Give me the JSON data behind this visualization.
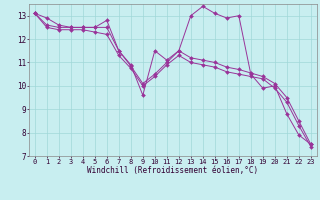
{
  "title": "",
  "xlabel": "Windchill (Refroidissement éolien,°C)",
  "ylabel": "",
  "background_color": "#c8eef0",
  "grid_color": "#a0d8d8",
  "line_color": "#993399",
  "xlim": [
    -0.5,
    23.5
  ],
  "ylim": [
    7,
    13.5
  ],
  "yticks": [
    7,
    8,
    9,
    10,
    11,
    12,
    13
  ],
  "xticks": [
    0,
    1,
    2,
    3,
    4,
    5,
    6,
    7,
    8,
    9,
    10,
    11,
    12,
    13,
    14,
    15,
    16,
    17,
    18,
    19,
    20,
    21,
    22,
    23
  ],
  "series": [
    [
      13.1,
      12.9,
      12.6,
      12.5,
      12.5,
      12.5,
      12.8,
      11.5,
      10.9,
      9.6,
      11.5,
      11.1,
      11.5,
      13.0,
      13.4,
      13.1,
      12.9,
      13.0,
      10.5,
      9.9,
      10.0,
      8.8,
      7.9,
      7.5
    ],
    [
      13.1,
      12.6,
      12.5,
      12.5,
      12.5,
      12.5,
      12.5,
      11.5,
      10.85,
      10.1,
      10.5,
      11.0,
      11.5,
      11.2,
      11.1,
      11.0,
      10.8,
      10.7,
      10.55,
      10.4,
      10.1,
      9.5,
      8.5,
      7.5
    ],
    [
      13.1,
      12.5,
      12.4,
      12.4,
      12.4,
      12.3,
      12.2,
      11.3,
      10.75,
      10.0,
      10.4,
      10.9,
      11.3,
      11.0,
      10.9,
      10.8,
      10.6,
      10.5,
      10.4,
      10.3,
      9.9,
      9.3,
      8.3,
      7.4
    ]
  ],
  "tick_fontsize": 5,
  "xlabel_fontsize": 5.5,
  "marker_size": 2.0,
  "line_width": 0.7
}
